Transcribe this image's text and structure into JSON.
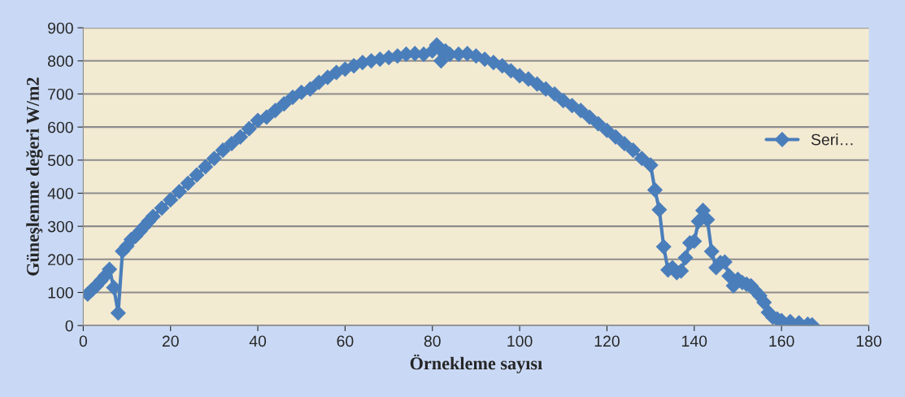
{
  "chart_data": {
    "type": "line",
    "xlabel": "Örnekleme sayısı",
    "ylabel": "Güneşlenme değeri W/m2",
    "xlim": [
      0,
      180
    ],
    "xticks": [
      0,
      20,
      40,
      60,
      80,
      100,
      120,
      140,
      160,
      180
    ],
    "ylim": [
      0,
      900
    ],
    "yticks": [
      0,
      100,
      200,
      300,
      400,
      500,
      600,
      700,
      800,
      900
    ],
    "grid": "y",
    "legend": "right",
    "marker": "diamond",
    "line_style": "solid",
    "series": [
      {
        "name": "Seri…",
        "color": "#4a7ebb",
        "x": [
          1,
          2,
          3,
          4,
          5,
          6,
          7,
          8,
          9,
          10,
          11,
          12,
          13,
          14,
          15,
          16,
          18,
          20,
          22,
          24,
          26,
          28,
          30,
          32,
          34,
          36,
          38,
          40,
          42,
          44,
          46,
          48,
          50,
          52,
          54,
          56,
          58,
          60,
          62,
          64,
          66,
          68,
          70,
          72,
          74,
          76,
          78,
          80,
          81,
          82,
          83,
          84,
          86,
          88,
          90,
          92,
          94,
          96,
          98,
          100,
          102,
          104,
          106,
          108,
          110,
          112,
          114,
          116,
          118,
          120,
          122,
          124,
          126,
          128,
          130,
          131,
          132,
          133,
          134,
          135,
          136,
          137,
          138,
          139,
          140,
          141,
          142,
          143,
          144,
          145,
          146,
          147,
          148,
          149,
          150,
          151,
          152,
          153,
          154,
          155,
          156,
          157,
          158,
          159,
          160,
          162,
          164,
          166,
          167
        ],
        "values": [
          95,
          108,
          120,
          135,
          150,
          170,
          115,
          38,
          225,
          240,
          260,
          270,
          285,
          300,
          315,
          330,
          355,
          380,
          405,
          430,
          455,
          480,
          505,
          530,
          550,
          570,
          595,
          620,
          630,
          650,
          670,
          690,
          705,
          715,
          735,
          750,
          765,
          775,
          785,
          795,
          800,
          805,
          810,
          815,
          820,
          822,
          820,
          830,
          848,
          800,
          830,
          820,
          820,
          822,
          815,
          805,
          795,
          785,
          770,
          755,
          745,
          730,
          715,
          700,
          680,
          665,
          650,
          630,
          610,
          590,
          570,
          550,
          530,
          505,
          485,
          410,
          350,
          238,
          168,
          175,
          160,
          165,
          205,
          250,
          255,
          315,
          348,
          320,
          224,
          175,
          190,
          192,
          150,
          120,
          140,
          130,
          125,
          120,
          105,
          90,
          70,
          40,
          25,
          20,
          15,
          12,
          8,
          4,
          2
        ]
      }
    ]
  }
}
